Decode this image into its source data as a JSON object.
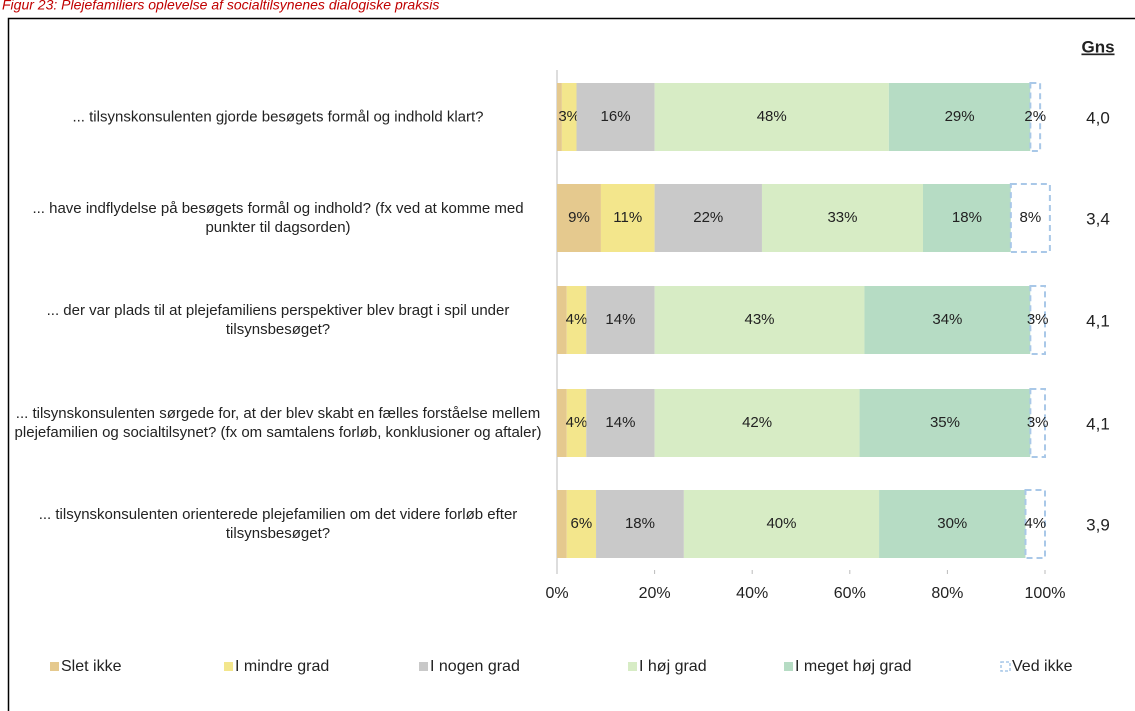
{
  "chart_data": {
    "type": "stacked-bar-horizontal",
    "title": "Figur 23: Plejefamiliers oplevelse af socialtilsynenes dialogiske praksis",
    "gns_header": "Gns",
    "categories": [
      "... tilsynskonsulenten gjorde besøgets formål og indhold klart?",
      "... have indflydelse på besøgets formål og indhold? (fx ved at komme med punkter til dagsorden)",
      "... der var plads til at plejefamiliens perspektiver blev bragt i spil under tilsynsbesøget?",
      "... tilsynskonsulenten sørgede for, at der blev skabt en fælles forståelse mellem plejefamilien og socialtilsynet? (fx om samtalens forløb, konklusioner og aftaler)",
      "... tilsynskonsulenten orienterede plejefamilien om det videre forløb efter tilsynsbesøget?"
    ],
    "gns": [
      "4,0",
      "3,4",
      "4,1",
      "4,1",
      "3,9"
    ],
    "series": [
      {
        "name": "Slet ikke",
        "color": "#e5c98e",
        "values": [
          1,
          9,
          2,
          2,
          2
        ],
        "value_labels": [
          null,
          "9%",
          null,
          null,
          null
        ]
      },
      {
        "name": "I mindre grad",
        "color": "#f3e68c",
        "values": [
          3,
          11,
          4,
          4,
          6
        ],
        "value_labels": [
          "3%",
          "11%",
          "4%",
          "4%",
          "6%"
        ]
      },
      {
        "name": "I nogen grad",
        "color": "#c9c9c9",
        "values": [
          16,
          22,
          14,
          14,
          18
        ],
        "value_labels": [
          "16%",
          "22%",
          "14%",
          "14%",
          "18%"
        ]
      },
      {
        "name": "I høj grad",
        "color": "#d7ecc5",
        "values": [
          48,
          33,
          43,
          42,
          40
        ],
        "value_labels": [
          "48%",
          "33%",
          "43%",
          "42%",
          "40%"
        ]
      },
      {
        "name": "I meget høj grad",
        "color": "#b6dcc4",
        "values": [
          29,
          18,
          34,
          35,
          30
        ],
        "value_labels": [
          "29%",
          "18%",
          "34%",
          "35%",
          "30%"
        ]
      },
      {
        "name": "Ved ikke",
        "color": "#a9c8e8",
        "dashed": true,
        "values": [
          2,
          8,
          3,
          3,
          4
        ],
        "value_labels": [
          "2%",
          "8%",
          "3%",
          "3%",
          "4%"
        ]
      }
    ],
    "xlim": [
      0,
      100
    ],
    "xticks": [
      {
        "value": 0,
        "label": "0%"
      },
      {
        "value": 20,
        "label": "20%"
      },
      {
        "value": 40,
        "label": "40%"
      },
      {
        "value": 60,
        "label": "60%"
      },
      {
        "value": 80,
        "label": "80%"
      },
      {
        "value": 100,
        "label": "100%"
      }
    ]
  }
}
